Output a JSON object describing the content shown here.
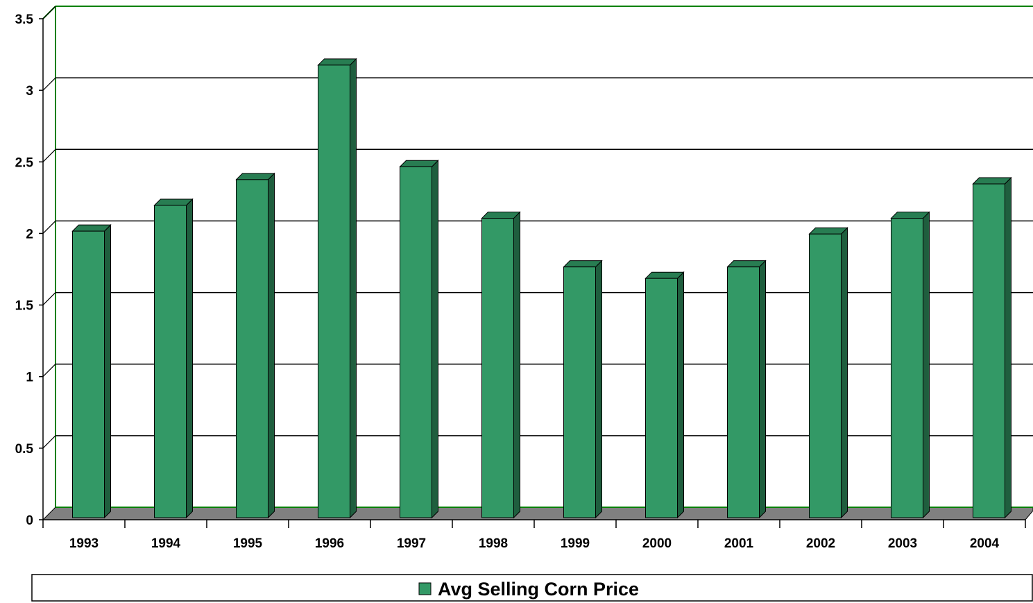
{
  "chart_data": {
    "type": "bar",
    "categories": [
      "1993",
      "1994",
      "1995",
      "1996",
      "1997",
      "1998",
      "1999",
      "2000",
      "2001",
      "2002",
      "2003",
      "2004"
    ],
    "series": [
      {
        "name": "Avg Selling Corn Price",
        "values": [
          2.05,
          2.23,
          2.41,
          3.21,
          2.5,
          2.14,
          1.8,
          1.72,
          1.8,
          2.03,
          2.14,
          2.38
        ]
      }
    ],
    "title": "",
    "xlabel": "",
    "ylabel": "",
    "ylim": [
      0,
      3.5
    ],
    "yticks": [
      "0",
      "0.5",
      "1",
      "1.5",
      "2",
      "2.5",
      "3",
      "3.5"
    ],
    "grid": true,
    "legend_position": "bottom",
    "style": "3d-bar",
    "colors": {
      "bar_front": "#339966",
      "bar_top": "#287d52",
      "bar_side": "#1f5e3e",
      "floor": "#808080",
      "wall_frame": "#008000",
      "gridline": "#000000"
    }
  }
}
